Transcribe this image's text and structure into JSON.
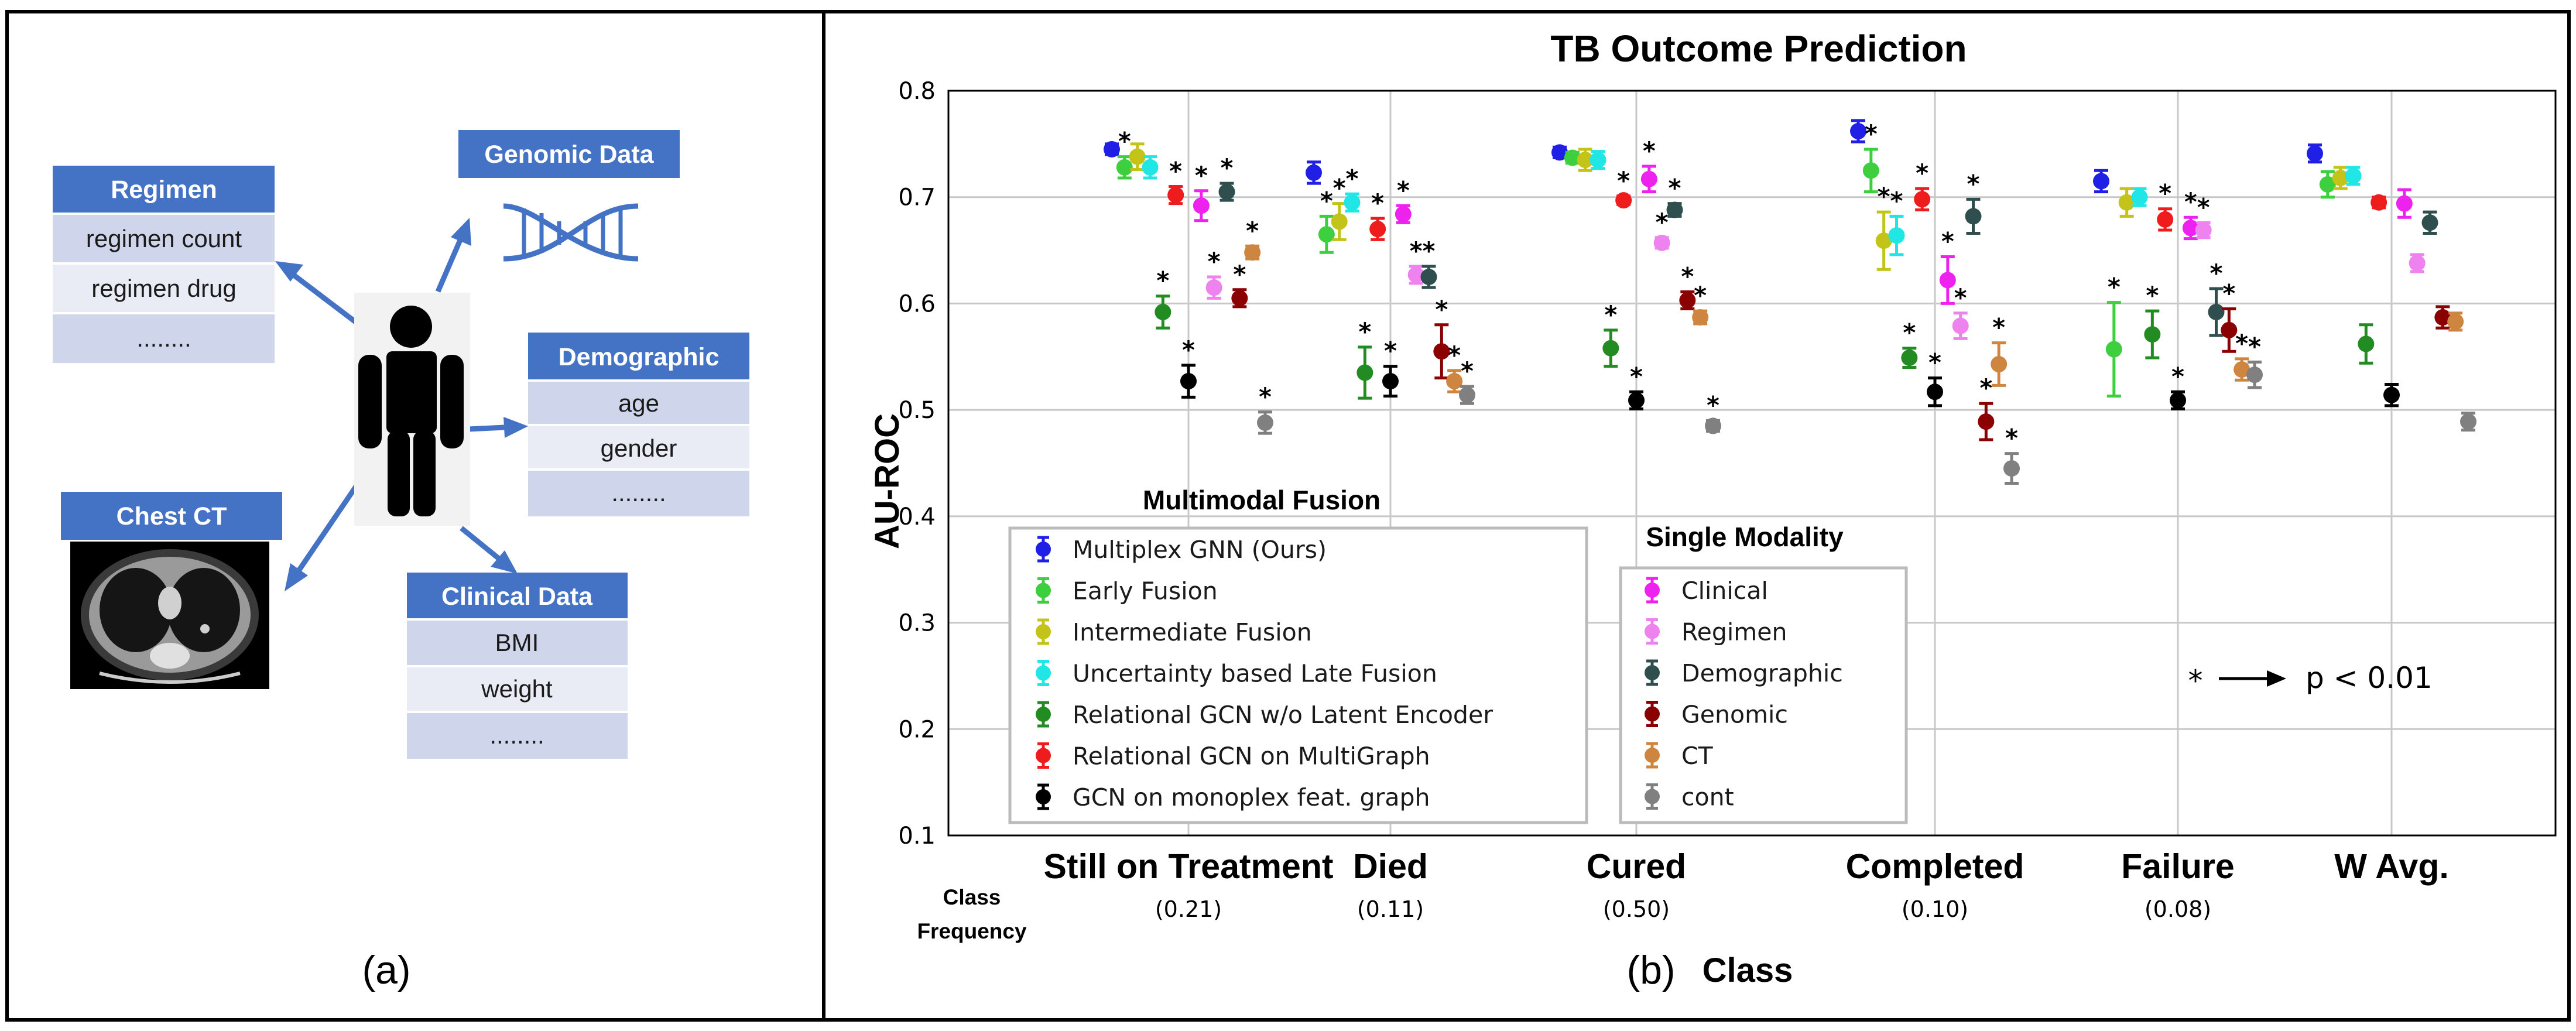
{
  "panel_a": {
    "label": "(a)",
    "regimen": {
      "title": "Regimen",
      "rows": [
        "regimen count",
        "regimen drug",
        "........"
      ]
    },
    "genomic": {
      "title": "Genomic Data"
    },
    "demographic": {
      "title": "Demographic",
      "rows": [
        "age",
        "gender",
        "........"
      ]
    },
    "chest_ct": {
      "title": "Chest CT"
    },
    "clinical": {
      "title": "Clinical Data",
      "rows": [
        "BMI",
        "weight",
        "........"
      ]
    },
    "icons": {
      "person": "person-icon",
      "dna": "dna-icon",
      "ct_image": "chest-ct-image"
    },
    "accent_color": "#4472c4"
  },
  "panel_b": {
    "label": "(b)",
    "class_frequency_label": [
      "Class",
      "Frequency"
    ],
    "frequencies": [
      "(0.21)",
      "(0.11)",
      "(0.50)",
      "(0.10)",
      "(0.08)",
      ""
    ],
    "legend_groups": {
      "multimodal": {
        "title": "Multimodal Fusion"
      },
      "single": {
        "title": "Single Modality"
      }
    },
    "significance_note": {
      "symbol": "*",
      "text": "p < 0.01"
    }
  },
  "chart_data": {
    "type": "scatter",
    "title": "TB Outcome Prediction",
    "xlabel": "Class",
    "ylabel": "AU-ROC",
    "ylim": [
      0.1,
      0.8
    ],
    "yticks": [
      "0.1",
      "0.2",
      "0.3",
      "0.4",
      "0.5",
      "0.6",
      "0.7",
      "0.8"
    ],
    "grid": true,
    "categories": [
      "Still on Treatment",
      "Died",
      "Cured",
      "Completed",
      "Failure",
      "W Avg."
    ],
    "error_bars": true,
    "series": [
      {
        "name": "Multiplex GNN (Ours)",
        "group": "multimodal",
        "color": "#1f1fe6",
        "values": [
          0.745,
          0.723,
          0.742,
          0.762,
          0.715,
          0.741
        ],
        "err": [
          0.005,
          0.01,
          0.005,
          0.01,
          0.01,
          0.008
        ],
        "sig": [
          false,
          false,
          false,
          false,
          false,
          false
        ]
      },
      {
        "name": "Early Fusion",
        "group": "multimodal",
        "color": "#3ecf3e",
        "values": [
          0.728,
          0.665,
          0.737,
          0.725,
          0.557,
          0.712
        ],
        "err": [
          0.01,
          0.017,
          0.005,
          0.02,
          0.044,
          0.012
        ],
        "sig": [
          true,
          true,
          false,
          true,
          true,
          false
        ]
      },
      {
        "name": "Intermediate Fusion",
        "group": "multimodal",
        "color": "#c3c31a",
        "values": [
          0.738,
          0.677,
          0.735,
          0.659,
          0.695,
          0.718
        ],
        "err": [
          0.012,
          0.017,
          0.01,
          0.027,
          0.013,
          0.01
        ],
        "sig": [
          false,
          true,
          false,
          true,
          false,
          false
        ]
      },
      {
        "name": "Uncertainty based Late Fusion",
        "group": "multimodal",
        "color": "#20e6e6",
        "values": [
          0.728,
          0.695,
          0.735,
          0.664,
          0.7,
          0.72
        ],
        "err": [
          0.01,
          0.008,
          0.008,
          0.018,
          0.008,
          0.008
        ],
        "sig": [
          false,
          true,
          false,
          true,
          false,
          false
        ]
      },
      {
        "name": "Relational GCN w/o Latent Encoder",
        "group": "multimodal",
        "color": "#228b22",
        "values": [
          0.592,
          0.535,
          0.558,
          0.549,
          0.571,
          0.562
        ],
        "err": [
          0.015,
          0.024,
          0.017,
          0.009,
          0.022,
          0.018
        ],
        "sig": [
          true,
          true,
          true,
          true,
          true,
          false
        ]
      },
      {
        "name": "Relational GCN on MultiGraph",
        "group": "multimodal",
        "color": "#ee1c1c",
        "values": [
          0.702,
          0.67,
          0.697,
          0.698,
          0.679,
          0.695
        ],
        "err": [
          0.008,
          0.01,
          0.004,
          0.01,
          0.01,
          0.005
        ],
        "sig": [
          true,
          true,
          true,
          true,
          true,
          false
        ]
      },
      {
        "name": "GCN on monoplex feat. graph",
        "group": "multimodal",
        "color": "#000000",
        "values": [
          0.527,
          0.527,
          0.509,
          0.517,
          0.509,
          0.514
        ],
        "err": [
          0.015,
          0.014,
          0.008,
          0.013,
          0.008,
          0.01
        ],
        "sig": [
          true,
          true,
          true,
          true,
          true,
          false
        ]
      },
      {
        "name": "Clinical",
        "group": "single",
        "color": "#ee22ee",
        "values": [
          0.692,
          0.684,
          0.717,
          0.622,
          0.671,
          0.694
        ],
        "err": [
          0.014,
          0.008,
          0.012,
          0.022,
          0.01,
          0.013
        ],
        "sig": [
          true,
          true,
          true,
          true,
          true,
          false
        ]
      },
      {
        "name": "Regimen",
        "group": "single",
        "color": "#ee82ee",
        "values": [
          0.615,
          0.627,
          0.657,
          0.579,
          0.669,
          0.638
        ],
        "err": [
          0.01,
          0.008,
          0.005,
          0.012,
          0.007,
          0.008
        ],
        "sig": [
          true,
          true,
          true,
          true,
          true,
          false
        ]
      },
      {
        "name": "Demographic",
        "group": "single",
        "color": "#2f4f4f",
        "values": [
          0.705,
          0.625,
          0.688,
          0.682,
          0.592,
          0.676
        ],
        "err": [
          0.008,
          0.01,
          0.006,
          0.016,
          0.022,
          0.01
        ],
        "sig": [
          true,
          true,
          true,
          true,
          true,
          false
        ]
      },
      {
        "name": "Genomic",
        "group": "single",
        "color": "#8b0000",
        "values": [
          0.605,
          0.555,
          0.603,
          0.489,
          0.575,
          0.587
        ],
        "err": [
          0.008,
          0.025,
          0.008,
          0.017,
          0.02,
          0.01
        ],
        "sig": [
          true,
          true,
          true,
          true,
          true,
          false
        ]
      },
      {
        "name": "CT",
        "group": "single",
        "color": "#cd853f",
        "values": [
          0.648,
          0.527,
          0.587,
          0.543,
          0.538,
          0.583
        ],
        "err": [
          0.006,
          0.01,
          0.006,
          0.02,
          0.01,
          0.008
        ],
        "sig": [
          true,
          true,
          true,
          true,
          true,
          false
        ]
      },
      {
        "name": "cont",
        "group": "single",
        "color": "#808080",
        "values": [
          0.488,
          0.514,
          0.485,
          0.445,
          0.533,
          0.489
        ],
        "err": [
          0.01,
          0.008,
          0.005,
          0.014,
          0.012,
          0.008
        ],
        "sig": [
          true,
          true,
          true,
          true,
          true,
          false
        ]
      }
    ]
  }
}
